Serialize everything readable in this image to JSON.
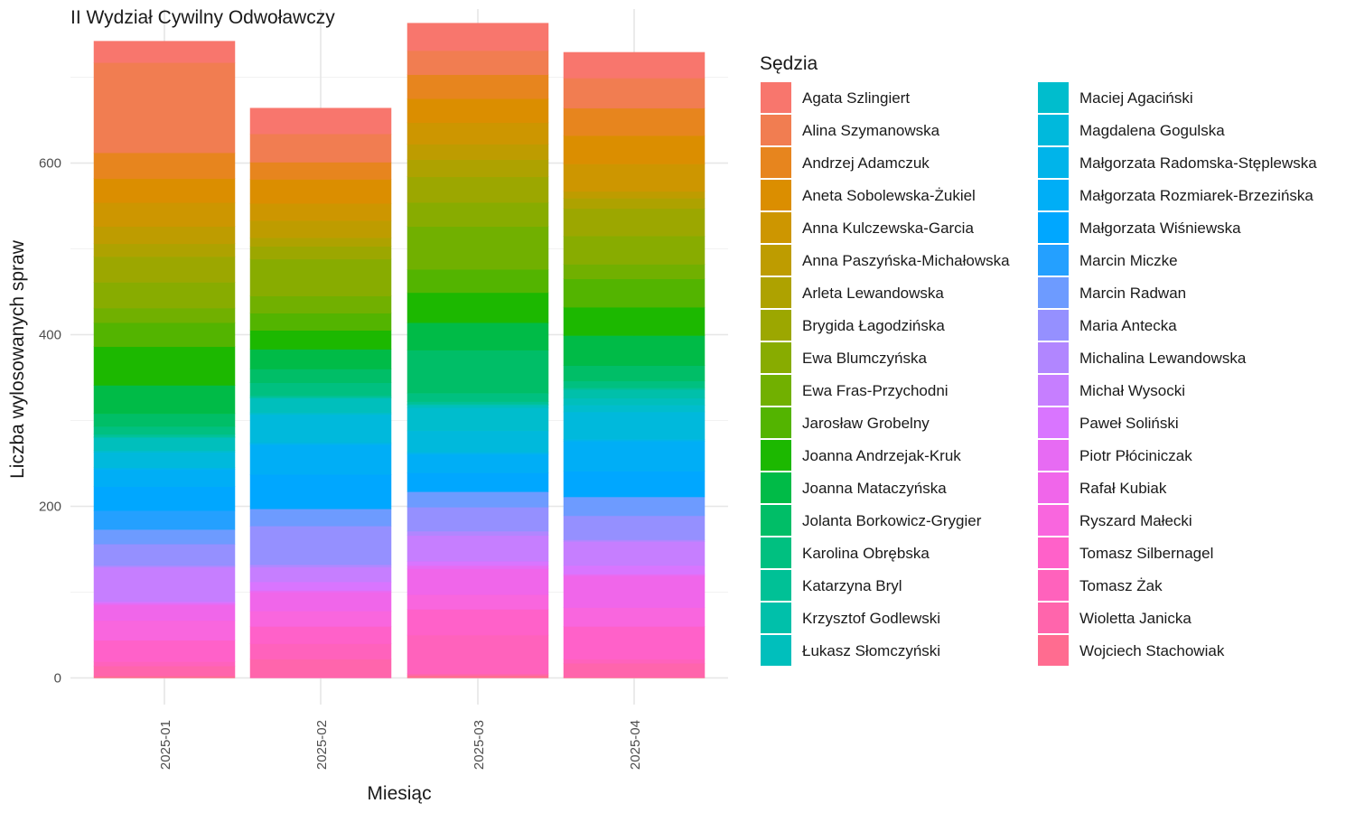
{
  "chart_data": {
    "type": "bar",
    "stacked": true,
    "title": "II Wydział Cywilny Odwoławczy",
    "xlabel": "Miesiąc",
    "ylabel": "Liczba wylosowanych spraw",
    "categories": [
      "2025-01",
      "2025-02",
      "2025-03",
      "2025-04"
    ],
    "ylim": [
      0,
      780
    ],
    "yticks": [
      0,
      200,
      400,
      600
    ],
    "grid": true,
    "legend": {
      "title": "Sędzia",
      "position": "right",
      "columns": 2
    },
    "series": [
      {
        "name": "Agata Szlingiert",
        "color": "#F8766D",
        "values": [
          25,
          30,
          32,
          30
        ]
      },
      {
        "name": "Alina Szymanowska",
        "color": "#F17D51",
        "values": [
          105,
          33,
          28,
          35
        ]
      },
      {
        "name": "Andrzej Adamczuk",
        "color": "#E7851E",
        "values": [
          30,
          20,
          28,
          32
        ]
      },
      {
        "name": "Aneta Sobolewska-Żukiel",
        "color": "#DB8E00",
        "values": [
          28,
          28,
          28,
          33
        ]
      },
      {
        "name": "Anna Kulczewska-Garcia",
        "color": "#CD9600",
        "values": [
          28,
          20,
          25,
          32
        ]
      },
      {
        "name": "Anna Paszyńska-Michałowska",
        "color": "#BE9C00",
        "values": [
          20,
          20,
          18,
          8
        ]
      },
      {
        "name": "Arleta Lewandowska",
        "color": "#AEA200",
        "values": [
          15,
          10,
          20,
          12
        ]
      },
      {
        "name": "Brygida Łagodzińska",
        "color": "#9CA700",
        "values": [
          30,
          15,
          30,
          32
        ]
      },
      {
        "name": "Ewa Blumczyńska",
        "color": "#88AC00",
        "values": [
          30,
          43,
          28,
          33
        ]
      },
      {
        "name": "Ewa Fras-Przychodni",
        "color": "#71B000",
        "values": [
          17,
          20,
          50,
          17
        ]
      },
      {
        "name": "Jarosław Grobelny",
        "color": "#53B400",
        "values": [
          28,
          20,
          27,
          33
        ]
      },
      {
        "name": "Joanna Andrzejak-Kruk",
        "color": "#1CB800",
        "values": [
          45,
          22,
          35,
          33
        ]
      },
      {
        "name": "Joanna Mataczyńska",
        "color": "#00BB47",
        "values": [
          33,
          23,
          32,
          35
        ]
      },
      {
        "name": "Jolanta Borkowicz-Grygier",
        "color": "#00BE67",
        "values": [
          15,
          16,
          50,
          18
        ]
      },
      {
        "name": "Karolina Obrębska",
        "color": "#00C080",
        "values": [
          9,
          15,
          10,
          8
        ]
      },
      {
        "name": "Katarzyna Bryl",
        "color": "#00C196",
        "values": [
          3,
          2,
          3,
          2
        ]
      },
      {
        "name": "Krzysztof Godlewski",
        "color": "#00C0AA",
        "values": [
          1,
          1,
          1,
          10
        ]
      },
      {
        "name": "Łukasz Słomczyński",
        "color": "#00BFBC",
        "values": [
          15,
          17,
          3,
          8
        ]
      },
      {
        "name": "Maciej Agaciński",
        "color": "#00BDCD",
        "values": [
          2,
          2,
          27,
          8
        ]
      },
      {
        "name": "Magdalena Gogulska",
        "color": "#00B9DC",
        "values": [
          18,
          33,
          25,
          32
        ]
      },
      {
        "name": "Małgorzata Radomska-Stęplewska",
        "color": "#00B4EA",
        "values": [
          2,
          2,
          2,
          2
        ]
      },
      {
        "name": "Małgorzata Rozmiarek-Brzezińska",
        "color": "#00AEF6",
        "values": [
          20,
          35,
          22,
          35
        ]
      },
      {
        "name": "Małgorzata Wiśniewska",
        "color": "#00A7FF",
        "values": [
          28,
          40,
          22,
          30
        ]
      },
      {
        "name": "Marcin Miczke",
        "color": "#24A0FF",
        "values": [
          22,
          0,
          0,
          0
        ]
      },
      {
        "name": "Marcin Radwan",
        "color": "#6D9BFF",
        "values": [
          17,
          20,
          18,
          22
        ]
      },
      {
        "name": "Maria Antecka",
        "color": "#9590FF",
        "values": [
          25,
          45,
          28,
          28
        ]
      },
      {
        "name": "Michalina Lewandowska",
        "color": "#B186FF",
        "values": [
          2,
          3,
          5,
          2
        ]
      },
      {
        "name": "Michał Wysocki",
        "color": "#C67EFF",
        "values": [
          40,
          17,
          30,
          28
        ]
      },
      {
        "name": "Paweł Soliński",
        "color": "#D975FF",
        "values": [
          2,
          10,
          5,
          10
        ]
      },
      {
        "name": "Piotr Płóciniczak",
        "color": "#E76BF3",
        "values": [
          2,
          2,
          4,
          2
        ]
      },
      {
        "name": "Rafał Kubiak",
        "color": "#F066EA",
        "values": [
          18,
          22,
          30,
          37
        ]
      },
      {
        "name": "Ryszard Małecki",
        "color": "#F966DE",
        "values": [
          23,
          18,
          17,
          22
        ]
      },
      {
        "name": "Tomasz Silbernagel",
        "color": "#FF61C9",
        "values": [
          25,
          20,
          30,
          38
        ]
      },
      {
        "name": "Tomasz Żak",
        "color": "#FF62BC",
        "values": [
          5,
          18,
          45,
          5
        ]
      },
      {
        "name": "Wioletta Janicka",
        "color": "#FF65AC",
        "values": [
          12,
          22,
          2,
          16
        ]
      },
      {
        "name": "Wojciech Stachowiak",
        "color": "#FF6C90",
        "values": [
          2,
          0,
          3,
          1
        ]
      }
    ]
  }
}
